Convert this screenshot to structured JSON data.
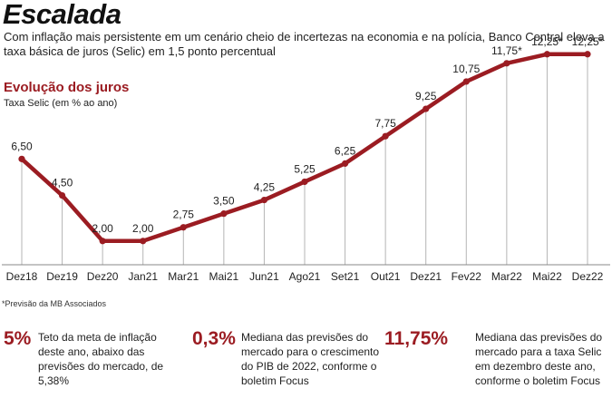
{
  "headline": "Escalada",
  "subtitle": "Com inflação mais persistente em um cenário cheio de incertezas na economia e na polícia, Banco Central eleva a taxa básica de juros (Selic) em 1,5 ponto percentual",
  "chart_data": {
    "type": "line",
    "title": "Evolução dos juros",
    "ylabel": "Taxa Selic (em % ao ano)",
    "xlabel": "",
    "categories": [
      "Dez18",
      "Dez19",
      "Dez20",
      "Jan21",
      "Mar21",
      "Mai21",
      "Jun21",
      "Ago21",
      "Set21",
      "Out21",
      "Dez21",
      "Fev22",
      "Mar22",
      "Mai22",
      "Dez22"
    ],
    "values": [
      6.5,
      4.5,
      2.0,
      2.0,
      2.75,
      3.5,
      4.25,
      5.25,
      6.25,
      7.75,
      9.25,
      10.75,
      11.75,
      12.25,
      12.25
    ],
    "labels": [
      "6,50",
      "4,50",
      "2,00",
      "2,00",
      "2,75",
      "3,50",
      "4,25",
      "5,25",
      "6,25",
      "7,75",
      "9,25",
      "10,75",
      "11,75*",
      "12,25*",
      "12,25*"
    ],
    "ylim": [
      0,
      13
    ],
    "grid": "vertical drop lines",
    "line_color": "#9b1c22"
  },
  "footnote": "*Previsão da MB Associados",
  "stats": [
    {
      "value": "5%",
      "text": "Teto da meta de inflação deste ano, abaixo das previsões do mercado, de 5,38%"
    },
    {
      "value": "0,3%",
      "text": "Mediana das previsões do mercado para o crescimento do PIB de 2022, conforme o boletim Focus"
    },
    {
      "value": "11,75%",
      "text": "Mediana das previsões do mercado para a taxa Selic em dezembro deste ano, conforme o boletim Focus"
    }
  ]
}
